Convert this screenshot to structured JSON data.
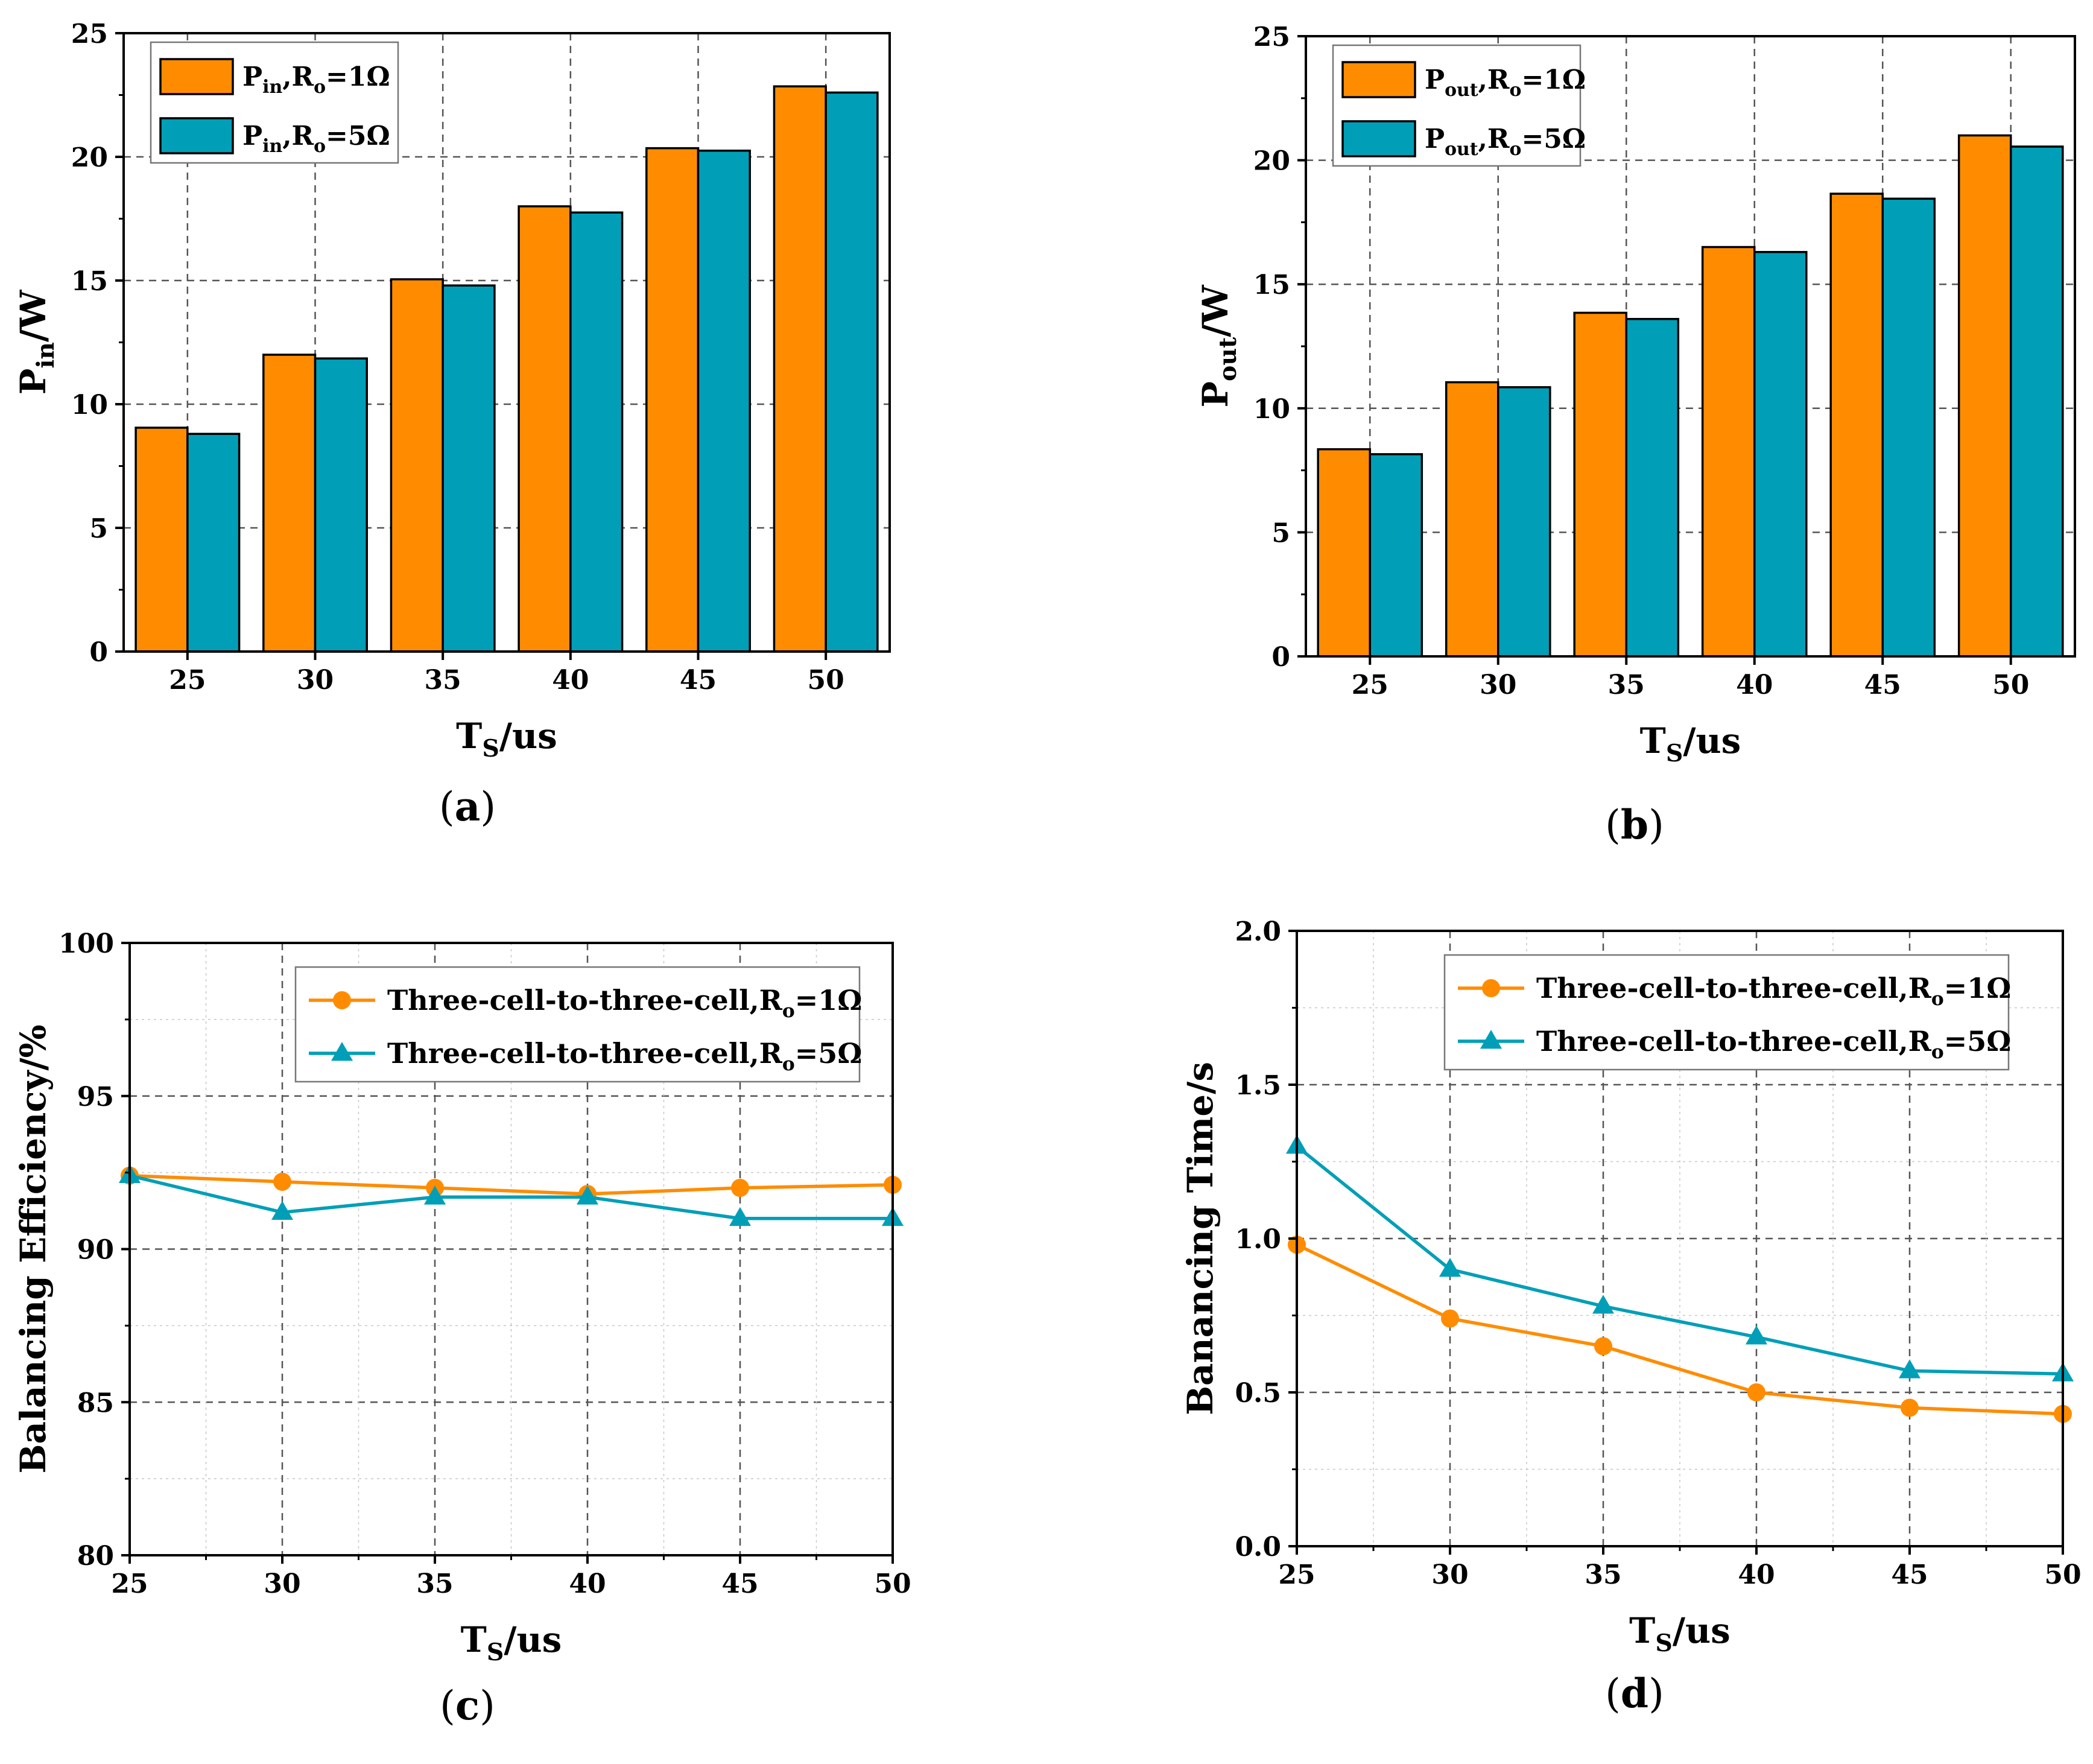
{
  "chart_data": [
    {
      "id": "a",
      "type": "bar",
      "panel_label": "a",
      "categories": [
        "25",
        "30",
        "35",
        "40",
        "45",
        "50"
      ],
      "series": [
        {
          "name": "Pin,Ro=1Ω",
          "legend_main": "P",
          "legend_sub": "in",
          "legend_mid": ",R",
          "legend_sub2": "o",
          "legend_tail": "=1Ω",
          "color": "#ff8c00",
          "values": [
            9.05,
            12.0,
            15.05,
            18.0,
            20.35,
            22.85
          ]
        },
        {
          "name": "Pin,Ro=5Ω",
          "legend_main": "P",
          "legend_sub": "in",
          "legend_mid": ",R",
          "legend_sub2": "o",
          "legend_tail": "=5Ω",
          "color": "#009fb7",
          "values": [
            8.8,
            11.85,
            14.8,
            17.75,
            20.25,
            22.6
          ]
        }
      ],
      "ylim": [
        0,
        25
      ],
      "yticks": [
        "0",
        "5",
        "10",
        "15",
        "20",
        "25"
      ],
      "xlabel": {
        "main": "T",
        "sub": "S",
        "tail": "/us"
      },
      "ylabel": {
        "main": "P",
        "sub": "in",
        "tail": "/W"
      },
      "legend": "top-left",
      "grid": true
    },
    {
      "id": "b",
      "type": "bar",
      "panel_label": "b",
      "categories": [
        "25",
        "30",
        "35",
        "40",
        "45",
        "50"
      ],
      "series": [
        {
          "name": "Pout,Ro=1Ω",
          "legend_main": "P",
          "legend_sub": "out",
          "legend_mid": ",R",
          "legend_sub2": "o",
          "legend_tail": "=1Ω",
          "color": "#ff8c00",
          "values": [
            8.35,
            11.05,
            13.85,
            16.5,
            18.65,
            21.0
          ]
        },
        {
          "name": "Pout,Ro=5Ω",
          "legend_main": "P",
          "legend_sub": "out",
          "legend_mid": ",R",
          "legend_sub2": "o",
          "legend_tail": "=5Ω",
          "color": "#009fb7",
          "values": [
            8.15,
            10.85,
            13.6,
            16.3,
            18.45,
            20.55
          ]
        }
      ],
      "ylim": [
        0,
        25
      ],
      "yticks": [
        "0",
        "5",
        "10",
        "15",
        "20",
        "25"
      ],
      "xlabel": {
        "main": "T",
        "sub": "S",
        "tail": "/us"
      },
      "ylabel": {
        "main": "P",
        "sub": "out",
        "tail": "/W"
      },
      "legend": "top-left",
      "grid": true
    },
    {
      "id": "c",
      "type": "line",
      "panel_label": "c",
      "x": [
        25,
        30,
        35,
        40,
        45,
        50
      ],
      "series": [
        {
          "name": "Three-cell-to-three-cell,Ro=1Ω",
          "legend_main": "Three-cell-to-three-cell,R",
          "legend_sub": "o",
          "legend_tail": "=1Ω",
          "color": "#ff8c00",
          "marker": "circle",
          "values": [
            92.4,
            92.2,
            92.0,
            91.8,
            92.0,
            92.1
          ]
        },
        {
          "name": "Three-cell-to-three-cell,Ro=5Ω",
          "legend_main": "Three-cell-to-three-cell,R",
          "legend_sub": "o",
          "legend_tail": "=5Ω",
          "color": "#009fb7",
          "marker": "triangle",
          "values": [
            92.4,
            91.2,
            91.7,
            91.7,
            91.0,
            91.0
          ]
        }
      ],
      "xlim": [
        25,
        50
      ],
      "ylim": [
        80,
        100
      ],
      "xticks": [
        "25",
        "30",
        "35",
        "40",
        "45",
        "50"
      ],
      "yticks": [
        "80",
        "85",
        "90",
        "95",
        "100"
      ],
      "xlabel": {
        "main": "T",
        "sub": "S",
        "tail": "/us"
      },
      "ylabel": {
        "main": "Balancing Efficiency/%",
        "sub": "",
        "tail": ""
      },
      "legend": "top-right",
      "grid": true
    },
    {
      "id": "d",
      "type": "line",
      "panel_label": "d",
      "x": [
        25,
        30,
        35,
        40,
        45,
        50
      ],
      "series": [
        {
          "name": "Three-cell-to-three-cell,Ro=1Ω",
          "legend_main": "Three-cell-to-three-cell,R",
          "legend_sub": "o",
          "legend_tail": "=1Ω",
          "color": "#ff8c00",
          "marker": "circle",
          "values": [
            0.98,
            0.74,
            0.65,
            0.5,
            0.45,
            0.43
          ]
        },
        {
          "name": "Three-cell-to-three-cell,Ro=5Ω",
          "legend_main": "Three-cell-to-three-cell,R",
          "legend_sub": "o",
          "legend_tail": "=5Ω",
          "color": "#009fb7",
          "marker": "triangle",
          "values": [
            1.3,
            0.9,
            0.78,
            0.68,
            0.57,
            0.56
          ]
        }
      ],
      "xlim": [
        25,
        50
      ],
      "ylim": [
        0,
        2
      ],
      "xticks": [
        "25",
        "30",
        "35",
        "40",
        "45",
        "50"
      ],
      "yticks": [
        "0.0",
        "0.5",
        "1.0",
        "1.5",
        "2.0"
      ],
      "xlabel": {
        "main": "T",
        "sub": "S",
        "tail": "/us"
      },
      "ylabel": {
        "main": "Banancing Time/s",
        "sub": "",
        "tail": ""
      },
      "legend": "top-right",
      "grid": true
    }
  ]
}
